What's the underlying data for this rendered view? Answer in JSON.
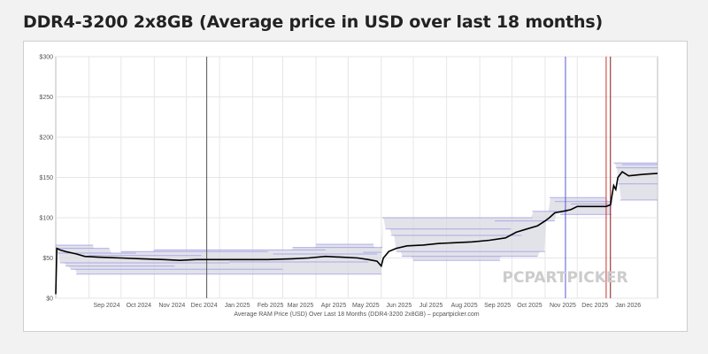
{
  "page": {
    "title": "DDR4-3200 2x8GB (Average price in USD over last 18 months)"
  },
  "watermark": {
    "text": "PCPARTPICKER"
  },
  "chart_data": {
    "type": "line",
    "title": "DDR4-3200 2x8GB (Average price in USD over last 18 months)",
    "caption": "Average RAM Price (USD) Over Last 18 Months (DDR4-3200 2x8GB) – pcpartpicker.com",
    "xlabel": "",
    "ylabel": "",
    "x_axis": {
      "type": "date",
      "range": [
        "2024-08-01",
        "2026-02-14"
      ],
      "ticks": [
        {
          "date": "2024-09-01",
          "label": "Sep 2024"
        },
        {
          "date": "2024-10-01",
          "label": "Oct 2024"
        },
        {
          "date": "2024-11-01",
          "label": "Nov 2024"
        },
        {
          "date": "2024-12-01",
          "label": "Dec 2024"
        },
        {
          "date": "2025-01-01",
          "label": "Jan 2025"
        },
        {
          "date": "2025-02-01",
          "label": "Feb 2025"
        },
        {
          "date": "2025-03-01",
          "label": "Mar 2025"
        },
        {
          "date": "2025-04-01",
          "label": "Apr 2025"
        },
        {
          "date": "2025-05-01",
          "label": "May 2025"
        },
        {
          "date": "2025-06-01",
          "label": "Jun 2025"
        },
        {
          "date": "2025-07-01",
          "label": "Jul 2025"
        },
        {
          "date": "2025-08-01",
          "label": "Aug 2025"
        },
        {
          "date": "2025-09-01",
          "label": "Sep 2025"
        },
        {
          "date": "2025-10-01",
          "label": "Oct 2025"
        },
        {
          "date": "2025-11-01",
          "label": "Nov 2025"
        },
        {
          "date": "2025-12-01",
          "label": "Dec 2025"
        },
        {
          "date": "2026-01-01",
          "label": "Jan 2026"
        }
      ]
    },
    "y_axis": {
      "range": [
        0,
        300
      ],
      "ticks": [
        0,
        50,
        100,
        150,
        200,
        250,
        300
      ],
      "tick_labels": [
        "$0",
        "$50",
        "$100",
        "$150",
        "$200",
        "$250",
        "$300"
      ]
    },
    "grid": true,
    "legend": "none",
    "colors": {
      "average_line": "#000000",
      "price_band": "#d6d6df",
      "price_lines": "#7b7be6",
      "vline_black": "#555555",
      "vline_blue": "#5555dd",
      "vline_red": "#cc3333",
      "grid": "#e6e6e6"
    },
    "vertical_markers": [
      {
        "date": "2024-12-20",
        "color": "black"
      },
      {
        "date": "2025-11-20",
        "color": "blue"
      },
      {
        "date": "2025-12-28",
        "color": "red"
      },
      {
        "date": "2026-01-01",
        "color": "darkred"
      }
    ],
    "series": [
      {
        "type": "average",
        "points": [
          [
            "2024-08-01",
            5
          ],
          [
            "2024-08-02",
            62
          ],
          [
            "2024-08-05",
            60
          ],
          [
            "2024-08-10",
            58
          ],
          [
            "2024-08-20",
            55
          ],
          [
            "2024-08-28",
            52
          ],
          [
            "2024-09-10",
            51
          ],
          [
            "2024-10-01",
            50
          ],
          [
            "2024-10-20",
            49
          ],
          [
            "2024-11-10",
            48
          ],
          [
            "2024-11-25",
            47
          ],
          [
            "2024-12-10",
            48
          ],
          [
            "2024-12-25",
            48
          ],
          [
            "2025-01-15",
            48
          ],
          [
            "2025-02-15",
            48
          ],
          [
            "2025-03-10",
            49
          ],
          [
            "2025-03-25",
            50
          ],
          [
            "2025-04-10",
            52
          ],
          [
            "2025-04-25",
            51
          ],
          [
            "2025-05-10",
            50
          ],
          [
            "2025-05-20",
            48
          ],
          [
            "2025-05-28",
            46
          ],
          [
            "2025-06-01",
            40
          ],
          [
            "2025-06-03",
            50
          ],
          [
            "2025-06-08",
            58
          ],
          [
            "2025-06-15",
            62
          ],
          [
            "2025-06-25",
            65
          ],
          [
            "2025-07-10",
            66
          ],
          [
            "2025-07-25",
            68
          ],
          [
            "2025-08-10",
            69
          ],
          [
            "2025-08-25",
            70
          ],
          [
            "2025-09-10",
            72
          ],
          [
            "2025-09-25",
            75
          ],
          [
            "2025-10-05",
            82
          ],
          [
            "2025-10-15",
            86
          ],
          [
            "2025-10-25",
            90
          ],
          [
            "2025-11-01",
            96
          ],
          [
            "2025-11-05",
            100
          ],
          [
            "2025-11-10",
            106
          ],
          [
            "2025-11-18",
            108
          ],
          [
            "2025-11-25",
            110
          ],
          [
            "2025-12-01",
            114
          ],
          [
            "2025-12-15",
            114
          ],
          [
            "2025-12-28",
            114
          ],
          [
            "2026-01-01",
            116
          ],
          [
            "2026-01-04",
            140
          ],
          [
            "2026-01-06",
            135
          ],
          [
            "2026-01-08",
            150
          ],
          [
            "2026-01-12",
            157
          ],
          [
            "2026-01-18",
            152
          ],
          [
            "2026-01-25",
            153
          ],
          [
            "2026-02-01",
            154
          ],
          [
            "2026-02-14",
            155
          ]
        ]
      },
      {
        "type": "retailer_steps",
        "segments": [
          [
            "2024-08-01",
            "2024-09-05",
            66
          ],
          [
            "2024-08-01",
            "2024-09-20",
            62
          ],
          [
            "2024-08-03",
            "2024-10-15",
            56
          ],
          [
            "2024-08-05",
            "2025-01-10",
            44
          ],
          [
            "2024-08-10",
            "2024-11-20",
            40
          ],
          [
            "2024-08-15",
            "2025-03-01",
            36
          ],
          [
            "2024-08-20",
            "2025-06-01",
            30
          ],
          [
            "2024-09-01",
            "2024-12-15",
            53
          ],
          [
            "2024-10-01",
            "2025-02-15",
            58
          ],
          [
            "2024-11-01",
            "2025-04-10",
            60
          ],
          [
            "2025-01-10",
            "2025-05-20",
            45
          ],
          [
            "2025-02-20",
            "2025-05-28",
            55
          ],
          [
            "2025-03-10",
            "2025-06-02",
            63
          ],
          [
            "2025-04-01",
            "2025-05-25",
            67
          ],
          [
            "2025-05-15",
            "2025-06-01",
            57
          ],
          [
            "2025-06-02",
            "2025-10-20",
            100
          ],
          [
            "2025-06-05",
            "2025-09-30",
            86
          ],
          [
            "2025-06-10",
            "2025-10-10",
            78
          ],
          [
            "2025-06-15",
            "2025-11-01",
            58
          ],
          [
            "2025-06-20",
            "2025-10-25",
            52
          ],
          [
            "2025-07-01",
            "2025-09-20",
            47
          ],
          [
            "2025-09-15",
            "2025-11-10",
            96
          ],
          [
            "2025-10-20",
            "2025-11-22",
            108
          ],
          [
            "2025-11-05",
            "2025-12-28",
            125
          ],
          [
            "2025-11-10",
            "2026-01-03",
            120
          ],
          [
            "2025-11-15",
            "2026-01-02",
            104
          ],
          [
            "2025-11-25",
            "2025-12-30",
            117
          ],
          [
            "2026-01-04",
            "2026-02-14",
            168
          ],
          [
            "2026-01-06",
            "2026-02-14",
            162
          ],
          [
            "2026-01-08",
            "2026-02-14",
            142
          ],
          [
            "2026-01-10",
            "2026-02-14",
            122
          ],
          [
            "2026-01-12",
            "2026-02-14",
            166
          ]
        ]
      }
    ]
  }
}
